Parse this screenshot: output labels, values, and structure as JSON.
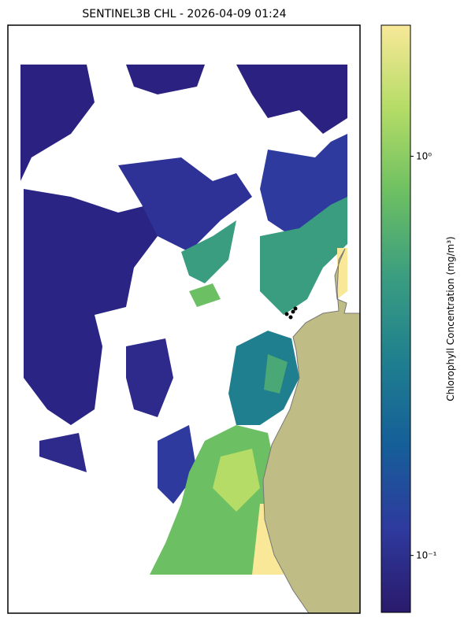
{
  "map": {
    "title": "SENTINEL3B CHL - 2026-04-09 01:24",
    "colorbar": {
      "label": "Chlorophyll Concentration (mg/m³)",
      "scale": "log",
      "lim": [
        0.072,
        2.13
      ],
      "ticks": [
        {
          "value": 1,
          "label": "10⁰"
        },
        {
          "value": 0.1,
          "label": "10⁻¹"
        }
      ],
      "colors": [
        "#2a1a6b",
        "#2e3a9e",
        "#155f99",
        "#1f7f8f",
        "#3a9d80",
        "#6cbf62",
        "#b4dc66",
        "#f8e898"
      ]
    }
  }
}
